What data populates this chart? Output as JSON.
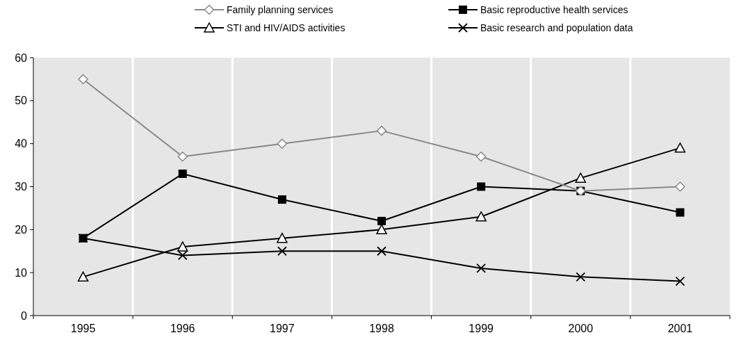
{
  "chart_data": {
    "type": "line",
    "categories": [
      "1995",
      "1996",
      "1997",
      "1998",
      "1999",
      "2000",
      "2001"
    ],
    "ylim": [
      0,
      60
    ],
    "yticks": [
      0,
      10,
      20,
      30,
      40,
      50,
      60
    ],
    "grid": "x",
    "legend": "top",
    "series": [
      {
        "name": "Family planning services",
        "color": "#888888",
        "marker": "diamond",
        "values": [
          55,
          37,
          40,
          43,
          37,
          29,
          30
        ]
      },
      {
        "name": "Basic reproductive health services",
        "color": "#000000",
        "marker": "square",
        "values": [
          18,
          33,
          27,
          22,
          30,
          29,
          24
        ]
      },
      {
        "name": "STI and HIV/AIDS activities",
        "color": "#000000",
        "marker": "triangle",
        "values": [
          9,
          16,
          18,
          20,
          23,
          32,
          39
        ]
      },
      {
        "name": "Basic research and population data",
        "color": "#000000",
        "marker": "cross",
        "values": [
          18,
          14,
          15,
          15,
          11,
          9,
          8
        ]
      }
    ]
  }
}
